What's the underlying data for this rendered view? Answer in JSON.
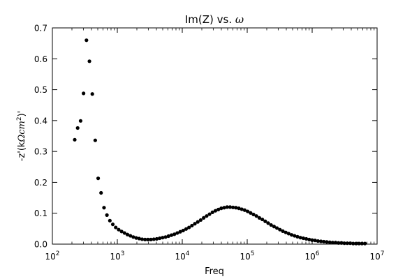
{
  "chart_data": {
    "type": "scatter",
    "title": "Im(Z) vs. ",
    "title_symbol": "ω",
    "xlabel": "Freq",
    "ylabel_prefix": "-z'(k",
    "ylabel_math": "Ωcm",
    "ylabel_sup": "2",
    "ylabel_suffix": ")'",
    "x_scale": "log",
    "xlim": [
      100,
      10000000
    ],
    "ylim": [
      0,
      0.7
    ],
    "x_ticks": [
      {
        "value": 100,
        "base": "10",
        "exp": "2"
      },
      {
        "value": 1000,
        "base": "10",
        "exp": "3"
      },
      {
        "value": 10000,
        "base": "10",
        "exp": "4"
      },
      {
        "value": 100000,
        "base": "10",
        "exp": "5"
      },
      {
        "value": 1000000,
        "base": "10",
        "exp": "6"
      },
      {
        "value": 10000000,
        "base": "10",
        "exp": "7"
      }
    ],
    "y_ticks": [
      {
        "value": 0,
        "label": "0.0"
      },
      {
        "value": 0.1,
        "label": "0.1"
      },
      {
        "value": 0.2,
        "label": "0.2"
      },
      {
        "value": 0.3,
        "label": "0.3"
      },
      {
        "value": 0.4,
        "label": "0.4"
      },
      {
        "value": 0.5,
        "label": "0.5"
      },
      {
        "value": 0.6,
        "label": "0.6"
      },
      {
        "value": 0.7,
        "label": "0.7"
      }
    ],
    "grid": false,
    "marker_color": "#000000",
    "points": [
      [
        221,
        0.338
      ],
      [
        245,
        0.376
      ],
      [
        272,
        0.399
      ],
      [
        302,
        0.488
      ],
      [
        335,
        0.66
      ],
      [
        372,
        0.592
      ],
      [
        412,
        0.486
      ],
      [
        457,
        0.336
      ],
      [
        507,
        0.213
      ],
      [
        562,
        0.166
      ],
      [
        624,
        0.118
      ],
      [
        692,
        0.094
      ],
      [
        768,
        0.076
      ],
      [
        852,
        0.064
      ],
      [
        945,
        0.054
      ],
      [
        1049,
        0.047
      ],
      [
        1163,
        0.041
      ],
      [
        1291,
        0.036
      ],
      [
        1432,
        0.031
      ],
      [
        1589,
        0.027
      ],
      [
        1763,
        0.023
      ],
      [
        1956,
        0.02
      ],
      [
        2170,
        0.018
      ],
      [
        2408,
        0.016
      ],
      [
        2672,
        0.015
      ],
      [
        2964,
        0.015
      ],
      [
        3289,
        0.015
      ],
      [
        3649,
        0.016
      ],
      [
        4049,
        0.017
      ],
      [
        4492,
        0.019
      ],
      [
        4984,
        0.021
      ],
      [
        5530,
        0.023
      ],
      [
        6136,
        0.026
      ],
      [
        6808,
        0.029
      ],
      [
        7553,
        0.032
      ],
      [
        8381,
        0.036
      ],
      [
        9299,
        0.04
      ],
      [
        10317,
        0.044
      ],
      [
        11447,
        0.049
      ],
      [
        12701,
        0.054
      ],
      [
        14092,
        0.06
      ],
      [
        15636,
        0.066
      ],
      [
        17348,
        0.072
      ],
      [
        19248,
        0.078
      ],
      [
        21356,
        0.085
      ],
      [
        23696,
        0.091
      ],
      [
        26291,
        0.097
      ],
      [
        29170,
        0.103
      ],
      [
        32365,
        0.108
      ],
      [
        35910,
        0.112
      ],
      [
        39843,
        0.116
      ],
      [
        44207,
        0.118
      ],
      [
        49049,
        0.12
      ],
      [
        54421,
        0.12
      ],
      [
        60382,
        0.119
      ],
      [
        66995,
        0.118
      ],
      [
        74333,
        0.116
      ],
      [
        82474,
        0.113
      ],
      [
        91507,
        0.11
      ],
      [
        101530,
        0.106
      ],
      [
        112650,
        0.101
      ],
      [
        124988,
        0.096
      ],
      [
        138677,
        0.091
      ],
      [
        153866,
        0.085
      ],
      [
        170718,
        0.08
      ],
      [
        189416,
        0.074
      ],
      [
        210162,
        0.068
      ],
      [
        233180,
        0.062
      ],
      [
        258719,
        0.057
      ],
      [
        287055,
        0.052
      ],
      [
        318495,
        0.047
      ],
      [
        353378,
        0.042
      ],
      [
        392081,
        0.038
      ],
      [
        435024,
        0.034
      ],
      [
        482670,
        0.03
      ],
      [
        535534,
        0.027
      ],
      [
        594188,
        0.024
      ],
      [
        659267,
        0.021
      ],
      [
        731473,
        0.019
      ],
      [
        811588,
        0.017
      ],
      [
        900478,
        0.015
      ],
      [
        999103,
        0.013
      ],
      [
        1108530,
        0.012
      ],
      [
        1229942,
        0.01
      ],
      [
        1364652,
        0.009
      ],
      [
        1514117,
        0.008
      ],
      [
        1679953,
        0.007
      ],
      [
        1863951,
        0.006
      ],
      [
        2068101,
        0.005
      ],
      [
        2294612,
        0.005
      ],
      [
        2545931,
        0.004
      ],
      [
        2824777,
        0.004
      ],
      [
        3134163,
        0.003
      ],
      [
        3477435,
        0.003
      ],
      [
        3858315,
        0.003
      ],
      [
        4280900,
        0.002
      ],
      [
        4749769,
        0.002
      ],
      [
        5269997,
        0.002
      ],
      [
        5847204,
        0.002
      ],
      [
        6487632,
        0.002
      ]
    ]
  }
}
